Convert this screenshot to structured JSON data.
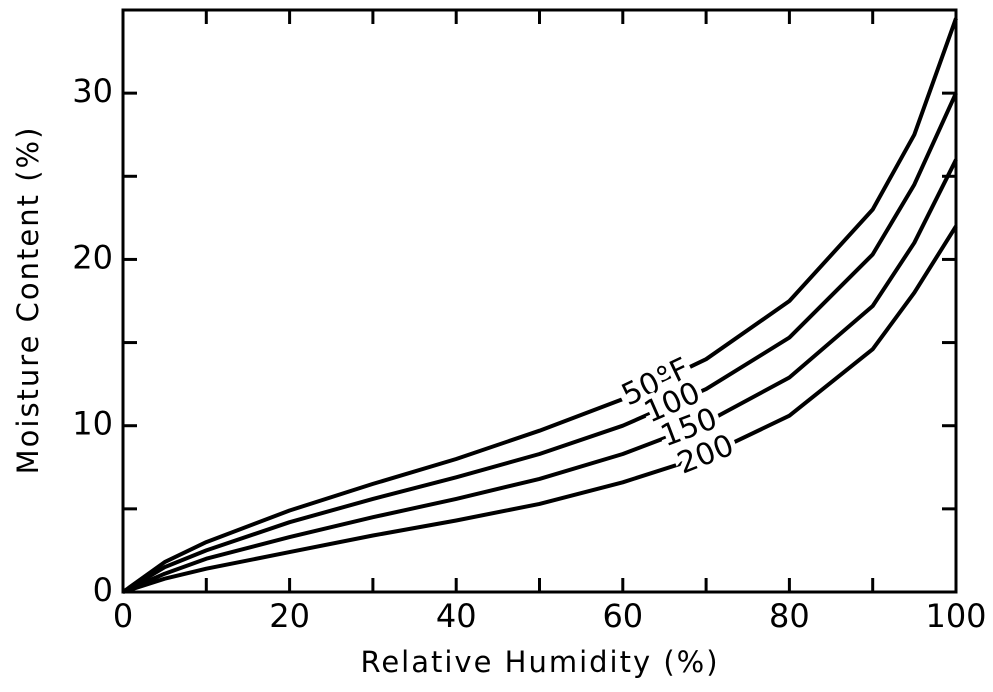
{
  "chart_data": {
    "type": "line",
    "xlabel": "Relative Humidity (%)",
    "ylabel": "Moisture Content (%)",
    "x": [
      0,
      5,
      10,
      20,
      30,
      40,
      50,
      60,
      70,
      80,
      90,
      95,
      100
    ],
    "series": [
      {
        "name": "50°F",
        "color": "#000000",
        "values": [
          0,
          1.8,
          3.0,
          4.9,
          6.5,
          8.0,
          9.7,
          11.6,
          14.0,
          17.5,
          23.0,
          27.5,
          34.5
        ]
      },
      {
        "name": "100",
        "color": "#000000",
        "values": [
          0,
          1.5,
          2.5,
          4.2,
          5.6,
          6.9,
          8.3,
          10.0,
          12.2,
          15.3,
          20.3,
          24.5,
          30.0
        ]
      },
      {
        "name": "150",
        "color": "#000000",
        "values": [
          0,
          1.1,
          2.0,
          3.3,
          4.5,
          5.6,
          6.8,
          8.3,
          10.2,
          12.9,
          17.2,
          21.0,
          26.0
        ]
      },
      {
        "name": "200",
        "color": "#000000",
        "values": [
          0,
          0.8,
          1.4,
          2.4,
          3.4,
          4.3,
          5.3,
          6.6,
          8.2,
          10.6,
          14.6,
          18.0,
          22.0
        ]
      }
    ],
    "xlim": [
      0,
      100
    ],
    "xticks": [
      0,
      20,
      40,
      60,
      80,
      100
    ],
    "xminor_ticks": [
      10,
      30,
      50,
      70,
      90
    ],
    "ylim": [
      0,
      35
    ],
    "yticks": [
      0,
      10,
      20,
      30
    ],
    "yminor_ticks": [
      5,
      15,
      25,
      35
    ],
    "grid": false
  }
}
